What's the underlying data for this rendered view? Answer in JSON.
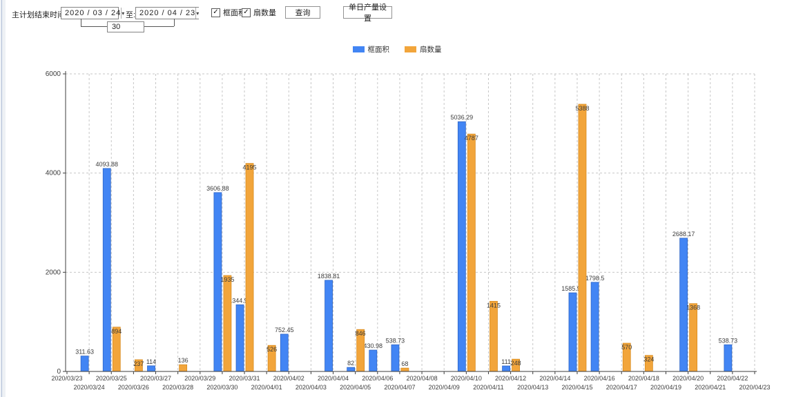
{
  "toolbar": {
    "label_main": "主计划结束时间:",
    "date_from": "2020 / 03 / 24",
    "label_to": "至:",
    "date_to": "2020 / 04 / 23",
    "interval_value": "30",
    "checkbox_frame_area": {
      "label": "框面积",
      "checked": true
    },
    "checkbox_sash_count": {
      "label": "扇数量",
      "checked": true
    },
    "query_button": "查询",
    "daily_output_button": "单日产量设置"
  },
  "icons": {
    "dropdown_arrow": "▾",
    "checkmark": "✓"
  },
  "legend": [
    {
      "label": "框面积",
      "color": "#4285F4"
    },
    {
      "label": "扇数量",
      "color": "#F2A53B"
    }
  ],
  "chart_data": {
    "type": "bar",
    "title": "",
    "xlabel": "",
    "ylabel": "",
    "ylim": [
      0,
      6000
    ],
    "yticks": [
      0,
      2000,
      4000,
      6000
    ],
    "grid": "dashed",
    "legend_position": "top-center",
    "categories": [
      "2020/03/23",
      "2020/03/24",
      "2020/03/25",
      "2020/03/26",
      "2020/03/27",
      "2020/03/28",
      "2020/03/29",
      "2020/03/30",
      "2020/03/31",
      "2020/04/01",
      "2020/04/02",
      "2020/04/03",
      "2020/04/04",
      "2020/04/05",
      "2020/04/06",
      "2020/04/07",
      "2020/04/08",
      "2020/04/09",
      "2020/04/10",
      "2020/04/11",
      "2020/04/12",
      "2020/04/13",
      "2020/04/14",
      "2020/04/15",
      "2020/04/16",
      "2020/04/17",
      "2020/04/18",
      "2020/04/19",
      "2020/04/20",
      "2020/04/21",
      "2020/04/22",
      "2020/04/23"
    ],
    "series": [
      {
        "name": "框面积",
        "color": "#4285F4",
        "edge": "#2E66C7",
        "values": [
          null,
          311.63,
          4093.88,
          null,
          114,
          null,
          null,
          3606.88,
          1344.95,
          null,
          752.45,
          null,
          1838.81,
          82,
          430.98,
          538.73,
          null,
          null,
          5036.29,
          null,
          111,
          null,
          null,
          1585.96,
          1798.5,
          null,
          null,
          null,
          2688.17,
          null,
          538.73,
          null
        ]
      },
      {
        "name": "扇数量",
        "color": "#F2A53B",
        "edge": "#D88B1E",
        "values": [
          null,
          null,
          894,
          237,
          null,
          136,
          null,
          1935,
          4195,
          526,
          null,
          null,
          null,
          846,
          null,
          68,
          null,
          null,
          4787,
          1415,
          248,
          null,
          null,
          5388,
          null,
          570,
          324,
          null,
          1368,
          null,
          null,
          null
        ]
      }
    ]
  }
}
